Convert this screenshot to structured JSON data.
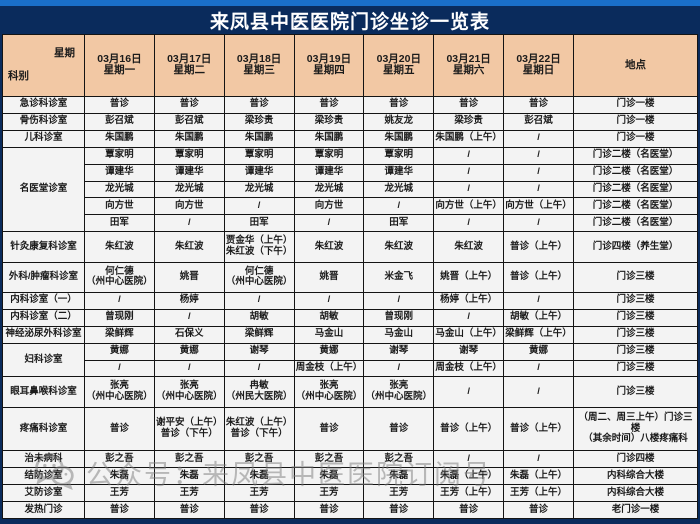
{
  "title": "来凤县中医医院门诊坐诊一览表",
  "colors": {
    "top_strip": "#1a6fc9",
    "banner": "#0a2b5c",
    "header_bg": "#f2c8a4",
    "cell_bg": "#f3f3f3",
    "border": "#141414"
  },
  "header": {
    "corner_top": "星期",
    "corner_bottom": "科别",
    "days": [
      {
        "date": "03月16日",
        "week": "星期一"
      },
      {
        "date": "03月17日",
        "week": "星期二"
      },
      {
        "date": "03月18日",
        "week": "星期三"
      },
      {
        "date": "03月19日",
        "week": "星期四"
      },
      {
        "date": "03月20日",
        "week": "星期五"
      },
      {
        "date": "03月21日",
        "week": "星期六"
      },
      {
        "date": "03月22日",
        "week": "星期日"
      }
    ],
    "location": "地点"
  },
  "rows": [
    {
      "label": "急诊科诊室",
      "rowspan": 1,
      "cells": [
        "普诊",
        "普诊",
        "普诊",
        "普诊",
        "普诊",
        "普诊",
        "普诊"
      ],
      "location": "门诊一楼"
    },
    {
      "label": "骨伤科诊室",
      "rowspan": 1,
      "cells": [
        "彭召斌",
        "彭召斌",
        "梁珍贵",
        "梁珍贵",
        "姚友龙",
        "梁珍贵",
        "彭召斌"
      ],
      "location": "门诊一楼"
    },
    {
      "label": "儿科诊室",
      "rowspan": 1,
      "cells": [
        "朱国鹏",
        "朱国鹏",
        "朱国鹏",
        "朱国鹏",
        "朱国鹏",
        "朱国鹏（上午）",
        "/"
      ],
      "location": "门诊一楼"
    },
    {
      "label": "名医堂诊室",
      "rowspan": 5,
      "cells": [
        "覃家明",
        "覃家明",
        "覃家明",
        "覃家明",
        "覃家明",
        "/",
        "/"
      ],
      "location": "门诊二楼（名医堂）"
    },
    {
      "cells": [
        "谭建华",
        "谭建华",
        "谭建华",
        "谭建华",
        "谭建华",
        "/",
        "/"
      ],
      "location": "门诊二楼（名医堂）"
    },
    {
      "cells": [
        "龙光城",
        "龙光城",
        "龙光城",
        "龙光城",
        "龙光城",
        "/",
        "/"
      ],
      "location": "门诊二楼（名医堂）"
    },
    {
      "cells": [
        "向方世",
        "向方世",
        "/",
        "向方世",
        "/",
        "向方世（上午）",
        "向方世（上午）"
      ],
      "location": "门诊二楼（名医堂）"
    },
    {
      "cells": [
        "田军",
        "/",
        "田军",
        "/",
        "田军",
        "/",
        "/"
      ],
      "location": "门诊二楼（名医堂）"
    },
    {
      "label": "针灸康复科诊室",
      "rowspan": 1,
      "cells": [
        "朱红波",
        "朱红波",
        "贾金华（上午）\n朱红波（下午）",
        "朱红波",
        "朱红波",
        "朱红波",
        "普诊（上午）"
      ],
      "location": "门诊四楼（养生堂）"
    },
    {
      "label": "外科/肿瘤科诊室",
      "rowspan": 1,
      "cells": [
        "何仁德\n（州中心医院）",
        "姚晋",
        "何仁德\n（州中心医院）",
        "姚晋",
        "米金飞",
        "姚晋（上午）",
        "普诊（上午）"
      ],
      "location": "门诊三楼"
    },
    {
      "label": "内科诊室（一）",
      "rowspan": 1,
      "cells": [
        "/",
        "杨婷",
        "/",
        "/",
        "/",
        "杨婷（上午）",
        "/"
      ],
      "location": "门诊三楼"
    },
    {
      "label": "内科诊室（二）",
      "rowspan": 1,
      "cells": [
        "曾现刚",
        "/",
        "胡敏",
        "胡敏",
        "曾现刚",
        "/",
        "胡敏（上午）"
      ],
      "location": "门诊三楼"
    },
    {
      "label": "神经泌尿外科诊室",
      "rowspan": 1,
      "cells": [
        "梁鲜辉",
        "石保义",
        "梁鲜辉",
        "马金山",
        "马金山",
        "马金山（上午）",
        "梁鲜辉（上午）"
      ],
      "location": "门诊三楼"
    },
    {
      "label": "妇科诊室",
      "rowspan": 2,
      "cells": [
        "黄娜",
        "黄娜",
        "谢琴",
        "黄娜",
        "谢琴",
        "谢琴",
        "黄娜"
      ],
      "location": "门诊三楼"
    },
    {
      "cells": [
        "/",
        "/",
        "/",
        "周金枝（上午）",
        "/",
        "周金枝（上午）",
        "/"
      ],
      "location": "门诊三楼"
    },
    {
      "label": "眼耳鼻喉科诊室",
      "rowspan": 1,
      "cells": [
        "张亮\n（州中心医院）",
        "张亮\n（州中心医院）",
        "冉敏\n（州民大医院）",
        "张亮\n（州中心医院）",
        "张亮\n（州中心医院）",
        "/",
        "/"
      ],
      "location": "门诊三楼"
    },
    {
      "label": "疼痛科诊室",
      "rowspan": 1,
      "cells": [
        "普诊",
        "谢平安（上午）\n普诊（下午）",
        "朱红波（上午）\n普诊（下午）",
        "普诊",
        "普诊",
        "普诊（上午）",
        "普诊（上午）"
      ],
      "location": "（周二、周三上午）门诊三楼\n（其余时间）八楼疼痛科"
    },
    {
      "label": "治未病科",
      "rowspan": 1,
      "cells": [
        "彭之吾",
        "彭之吾",
        "彭之吾",
        "彭之吾",
        "彭之吾",
        "/",
        "/"
      ],
      "location": "门诊四楼"
    },
    {
      "label": "结防诊室",
      "rowspan": 1,
      "cells": [
        "朱磊",
        "朱磊",
        "朱磊",
        "朱磊",
        "朱磊",
        "朱磊（上午）",
        "朱磊（上午）"
      ],
      "location": "内科综合大楼"
    },
    {
      "label": "艾防诊室",
      "rowspan": 1,
      "cells": [
        "王芳",
        "王芳",
        "王芳",
        "王芳",
        "王芳",
        "王芳（上午）",
        "王芳（上午）"
      ],
      "location": "内科综合大楼"
    },
    {
      "label": "发热门诊",
      "rowspan": 1,
      "cells": [
        "普诊",
        "普诊",
        "普诊",
        "普诊",
        "普诊",
        "普诊",
        "普诊"
      ],
      "location": "老门诊一楼"
    }
  ],
  "watermark": {
    "icon": "wechat-icon",
    "text": "公众号：来凤县中医医院订阅号"
  }
}
